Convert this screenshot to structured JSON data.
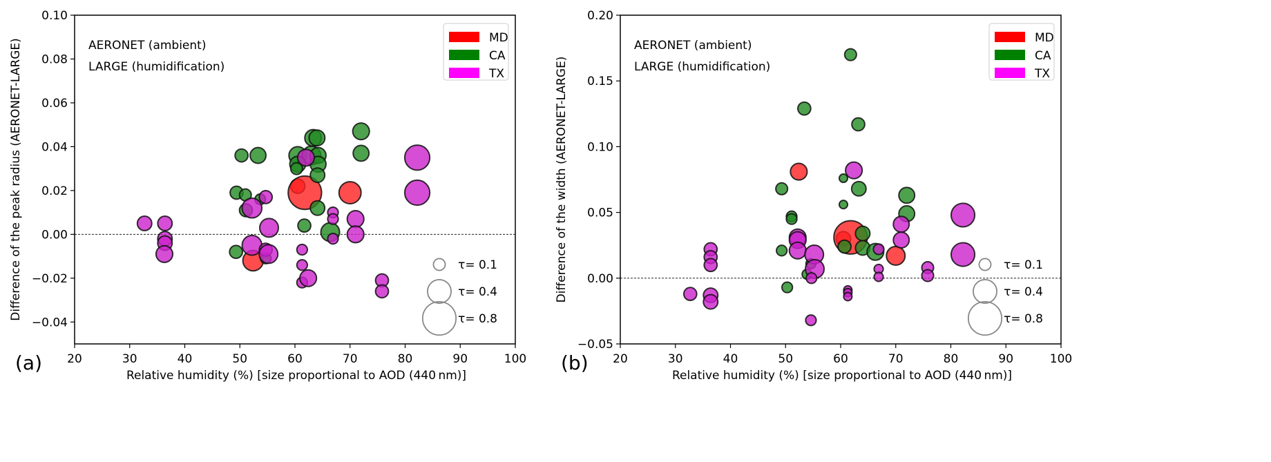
{
  "chart_data": [
    {
      "type": "scatter",
      "panel_label": "(a)",
      "xlabel": "Relative humidity (%)  [size proportional to AOD (440 nm)]",
      "ylabel": "Difference of  the peak  radius (AERONET-LARGE)",
      "xlim": [
        20,
        100
      ],
      "ylim": [
        -0.05,
        0.1
      ],
      "xticks": [
        "20",
        "30",
        "40",
        "50",
        "60",
        "70",
        "80",
        "90",
        "100"
      ],
      "yticks": [
        "−0.04",
        "−0.02",
        "0.00",
        "0.02",
        "0.04",
        "0.06",
        "0.08",
        "0.10"
      ],
      "ytick_values": [
        -0.04,
        -0.02,
        0,
        0.02,
        0.04,
        0.06,
        0.08,
        0.1
      ],
      "reference_line": 0,
      "annotations": [
        "AERONET (ambient)",
        "LARGE (humidification)"
      ],
      "legend_color": [
        {
          "label": "MD",
          "color": "#ff0000"
        },
        {
          "label": "CA",
          "color": "#008000"
        },
        {
          "label": "TX",
          "color": "#ff00ff"
        }
      ],
      "legend_size": [
        {
          "label": "τ= 0.1",
          "tau": 0.1
        },
        {
          "label": "τ= 0.4",
          "tau": 0.4
        },
        {
          "label": "τ= 0.8",
          "tau": 0.8
        }
      ],
      "series": [
        {
          "name": "MD",
          "color": "#ff2020",
          "points": [
            {
              "x": 60.5,
              "y": 0.022,
              "tau": 0.15
            },
            {
              "x": 61.8,
              "y": 0.019,
              "tau": 0.8
            },
            {
              "x": 70.0,
              "y": 0.019,
              "tau": 0.35
            },
            {
              "x": 52.4,
              "y": -0.012,
              "tau": 0.3
            }
          ]
        },
        {
          "name": "CA",
          "color": "#228b22",
          "points": [
            {
              "x": 50.3,
              "y": 0.036,
              "tau": 0.12
            },
            {
              "x": 53.3,
              "y": 0.036,
              "tau": 0.18
            },
            {
              "x": 49.4,
              "y": 0.019,
              "tau": 0.12
            },
            {
              "x": 51.0,
              "y": 0.018,
              "tau": 0.1
            },
            {
              "x": 53.7,
              "y": 0.016,
              "tau": 0.08
            },
            {
              "x": 51.1,
              "y": 0.011,
              "tau": 0.12
            },
            {
              "x": 49.3,
              "y": -0.008,
              "tau": 0.12
            },
            {
              "x": 54.7,
              "y": -0.011,
              "tau": 0.08
            },
            {
              "x": 63.3,
              "y": 0.044,
              "tau": 0.2
            },
            {
              "x": 64.0,
              "y": 0.044,
              "tau": 0.18
            },
            {
              "x": 60.5,
              "y": 0.036,
              "tau": 0.22
            },
            {
              "x": 63.0,
              "y": 0.036,
              "tau": 0.25
            },
            {
              "x": 64.2,
              "y": 0.036,
              "tau": 0.18
            },
            {
              "x": 60.5,
              "y": 0.032,
              "tau": 0.18
            },
            {
              "x": 64.2,
              "y": 0.032,
              "tau": 0.18
            },
            {
              "x": 60.3,
              "y": 0.03,
              "tau": 0.1
            },
            {
              "x": 64.1,
              "y": 0.027,
              "tau": 0.15
            },
            {
              "x": 64.1,
              "y": 0.012,
              "tau": 0.15
            },
            {
              "x": 61.7,
              "y": 0.004,
              "tau": 0.12
            },
            {
              "x": 66.4,
              "y": 0.001,
              "tau": 0.25
            },
            {
              "x": 72.0,
              "y": 0.047,
              "tau": 0.2
            },
            {
              "x": 72.0,
              "y": 0.037,
              "tau": 0.18
            }
          ]
        },
        {
          "name": "TX",
          "color": "#cc22cc",
          "points": [
            {
              "x": 62.0,
              "y": 0.035,
              "tau": 0.2
            },
            {
              "x": 52.2,
              "y": 0.012,
              "tau": 0.28
            },
            {
              "x": 54.7,
              "y": 0.017,
              "tau": 0.12
            },
            {
              "x": 55.3,
              "y": 0.003,
              "tau": 0.25
            },
            {
              "x": 52.2,
              "y": -0.005,
              "tau": 0.28
            },
            {
              "x": 54.7,
              "y": -0.007,
              "tau": 0.12
            },
            {
              "x": 55.2,
              "y": -0.009,
              "tau": 0.25
            },
            {
              "x": 32.7,
              "y": 0.005,
              "tau": 0.15
            },
            {
              "x": 36.4,
              "y": 0.005,
              "tau": 0.15
            },
            {
              "x": 36.4,
              "y": -0.002,
              "tau": 0.15
            },
            {
              "x": 36.4,
              "y": -0.004,
              "tau": 0.15
            },
            {
              "x": 36.3,
              "y": -0.009,
              "tau": 0.2
            },
            {
              "x": 61.3,
              "y": -0.007,
              "tau": 0.08
            },
            {
              "x": 61.3,
              "y": -0.014,
              "tau": 0.08
            },
            {
              "x": 61.3,
              "y": -0.022,
              "tau": 0.08
            },
            {
              "x": 62.4,
              "y": -0.02,
              "tau": 0.2
            },
            {
              "x": 66.9,
              "y": 0.01,
              "tau": 0.08
            },
            {
              "x": 66.9,
              "y": 0.007,
              "tau": 0.08
            },
            {
              "x": 66.9,
              "y": -0.002,
              "tau": 0.08
            },
            {
              "x": 71.0,
              "y": 0.007,
              "tau": 0.2
            },
            {
              "x": 71.0,
              "y": 0.0,
              "tau": 0.2
            },
            {
              "x": 75.8,
              "y": -0.021,
              "tau": 0.12
            },
            {
              "x": 75.8,
              "y": -0.026,
              "tau": 0.12
            },
            {
              "x": 82.2,
              "y": 0.035,
              "tau": 0.45
            },
            {
              "x": 82.2,
              "y": 0.019,
              "tau": 0.45
            }
          ]
        }
      ]
    },
    {
      "type": "scatter",
      "panel_label": "(b)",
      "xlabel": "Relative humidity (%)  [size proportional to AOD (440 nm)]",
      "ylabel": "Difference of  the width (AERONET-LARGE)",
      "xlim": [
        20,
        100
      ],
      "ylim": [
        -0.05,
        0.2
      ],
      "xticks": [
        "20",
        "30",
        "40",
        "50",
        "60",
        "70",
        "80",
        "90",
        "100"
      ],
      "yticks": [
        "−0.05",
        "0.00",
        "0.05",
        "0.10",
        "0.15",
        "0.20"
      ],
      "ytick_values": [
        -0.05,
        0,
        0.05,
        0.1,
        0.15,
        0.2
      ],
      "reference_line": 0,
      "annotations": [
        "AERONET (ambient)",
        "LARGE (humidification)"
      ],
      "legend_color": [
        {
          "label": "MD",
          "color": "#ff0000"
        },
        {
          "label": "CA",
          "color": "#008000"
        },
        {
          "label": "TX",
          "color": "#ff00ff"
        }
      ],
      "legend_size": [
        {
          "label": "τ= 0.1",
          "tau": 0.1
        },
        {
          "label": "τ= 0.4",
          "tau": 0.4
        },
        {
          "label": "τ= 0.8",
          "tau": 0.8
        }
      ],
      "series": [
        {
          "name": "MD",
          "color": "#ff2020",
          "points": [
            {
              "x": 52.4,
              "y": 0.081,
              "tau": 0.2
            },
            {
              "x": 60.5,
              "y": 0.03,
              "tau": 0.15
            },
            {
              "x": 61.8,
              "y": 0.031,
              "tau": 0.8
            },
            {
              "x": 70.0,
              "y": 0.017,
              "tau": 0.25
            }
          ]
        },
        {
          "name": "CA",
          "color": "#228b22",
          "points": [
            {
              "x": 61.8,
              "y": 0.17,
              "tau": 0.1
            },
            {
              "x": 53.4,
              "y": 0.129,
              "tau": 0.12
            },
            {
              "x": 63.2,
              "y": 0.117,
              "tau": 0.12
            },
            {
              "x": 49.3,
              "y": 0.068,
              "tau": 0.1
            },
            {
              "x": 63.3,
              "y": 0.068,
              "tau": 0.15
            },
            {
              "x": 60.5,
              "y": 0.076,
              "tau": 0.05
            },
            {
              "x": 60.5,
              "y": 0.056,
              "tau": 0.05
            },
            {
              "x": 51.1,
              "y": 0.047,
              "tau": 0.08
            },
            {
              "x": 51.1,
              "y": 0.045,
              "tau": 0.08
            },
            {
              "x": 49.3,
              "y": 0.021,
              "tau": 0.08
            },
            {
              "x": 54.6,
              "y": 0.011,
              "tau": 0.07
            },
            {
              "x": 53.9,
              "y": 0.003,
              "tau": 0.07
            },
            {
              "x": 50.3,
              "y": -0.007,
              "tau": 0.08
            },
            {
              "x": 60.7,
              "y": 0.024,
              "tau": 0.12
            },
            {
              "x": 64.0,
              "y": 0.034,
              "tau": 0.15
            },
            {
              "x": 64.0,
              "y": 0.023,
              "tau": 0.15
            },
            {
              "x": 66.3,
              "y": 0.02,
              "tau": 0.2
            },
            {
              "x": 72.0,
              "y": 0.063,
              "tau": 0.18
            },
            {
              "x": 72.0,
              "y": 0.049,
              "tau": 0.18
            }
          ]
        },
        {
          "name": "TX",
          "color": "#cc22cc",
          "points": [
            {
              "x": 62.4,
              "y": 0.082,
              "tau": 0.2
            },
            {
              "x": 52.2,
              "y": 0.031,
              "tau": 0.2
            },
            {
              "x": 52.2,
              "y": 0.029,
              "tau": 0.2
            },
            {
              "x": 52.2,
              "y": 0.021,
              "tau": 0.2
            },
            {
              "x": 55.2,
              "y": 0.018,
              "tau": 0.25
            },
            {
              "x": 55.3,
              "y": 0.007,
              "tau": 0.25
            },
            {
              "x": 54.7,
              "y": 0.0,
              "tau": 0.08
            },
            {
              "x": 54.6,
              "y": -0.032,
              "tau": 0.08
            },
            {
              "x": 36.4,
              "y": 0.022,
              "tau": 0.12
            },
            {
              "x": 36.4,
              "y": 0.016,
              "tau": 0.12
            },
            {
              "x": 36.4,
              "y": 0.01,
              "tau": 0.12
            },
            {
              "x": 32.7,
              "y": -0.012,
              "tau": 0.12
            },
            {
              "x": 36.4,
              "y": -0.013,
              "tau": 0.15
            },
            {
              "x": 36.4,
              "y": -0.018,
              "tau": 0.15
            },
            {
              "x": 61.3,
              "y": -0.009,
              "tau": 0.05
            },
            {
              "x": 61.3,
              "y": -0.011,
              "tau": 0.05
            },
            {
              "x": 61.3,
              "y": -0.014,
              "tau": 0.05
            },
            {
              "x": 66.9,
              "y": 0.022,
              "tau": 0.08
            },
            {
              "x": 66.9,
              "y": 0.007,
              "tau": 0.06
            },
            {
              "x": 66.9,
              "y": 0.001,
              "tau": 0.06
            },
            {
              "x": 71.0,
              "y": 0.041,
              "tau": 0.18
            },
            {
              "x": 71.0,
              "y": 0.029,
              "tau": 0.18
            },
            {
              "x": 75.8,
              "y": 0.008,
              "tau": 0.1
            },
            {
              "x": 75.8,
              "y": 0.002,
              "tau": 0.1
            },
            {
              "x": 82.2,
              "y": 0.048,
              "tau": 0.4
            },
            {
              "x": 82.2,
              "y": 0.018,
              "tau": 0.4
            }
          ]
        }
      ]
    }
  ]
}
